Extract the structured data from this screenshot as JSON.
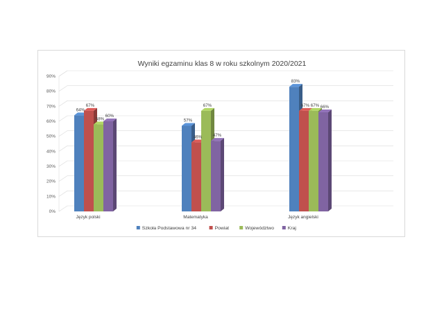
{
  "chart_data": {
    "type": "bar",
    "title": "Wyniki egzaminu klas 8 w roku szkolnym 2020/2021",
    "categories": [
      "Język polski",
      "Matematyka",
      "Język angielski"
    ],
    "series": [
      {
        "name": "Szkoła Podstawowa nr 34",
        "color": "#4f81bd",
        "values": [
          64,
          57,
          83
        ],
        "labels": [
          "64%",
          "57%",
          "83%"
        ]
      },
      {
        "name": "Powiat",
        "color": "#c0504d",
        "values": [
          67,
          46,
          67
        ],
        "labels": [
          "67%",
          "46%",
          "67%"
        ]
      },
      {
        "name": "Województwo",
        "color": "#9bbb59",
        "values": [
          58,
          67,
          67
        ],
        "labels": [
          "58%",
          "67%",
          "67%"
        ]
      },
      {
        "name": "Kraj",
        "color": "#8064a2",
        "values": [
          60,
          47,
          66
        ],
        "labels": [
          "60%",
          "47%",
          "66%"
        ]
      }
    ],
    "yticks": [
      "0%",
      "10%",
      "20%",
      "30%",
      "40%",
      "50%",
      "60%",
      "70%",
      "80%",
      "90%"
    ],
    "ylim": [
      0,
      90
    ],
    "grid": true,
    "legend_position": "bottom"
  }
}
